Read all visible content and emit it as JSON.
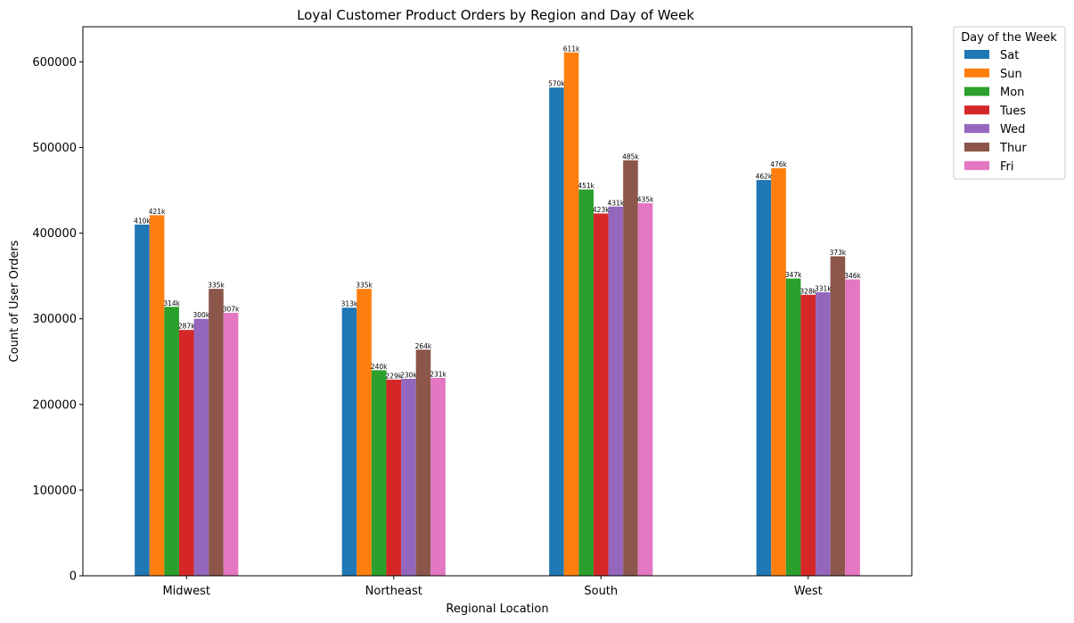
{
  "chart_data": {
    "type": "bar",
    "title": "Loyal Customer Product Orders by Region and Day of Week",
    "xlabel": "Regional Location",
    "ylabel": "Count of User Orders",
    "categories": [
      "Midwest",
      "Northeast",
      "South",
      "West"
    ],
    "ylim": [
      0,
      641000
    ],
    "yticks": [
      0,
      100000,
      200000,
      300000,
      400000,
      500000,
      600000
    ],
    "ytick_labels": [
      "0",
      "100000",
      "200000",
      "300000",
      "400000",
      "500000",
      "600000"
    ],
    "legend": {
      "title": "Day of the Week",
      "placement": "outside-top-right"
    },
    "grid": false,
    "series": [
      {
        "name": "Sat",
        "color": "#1f77b4",
        "values": [
          410000,
          313000,
          570000,
          462000
        ],
        "labels": [
          "410k",
          "313k",
          "570k",
          "462k"
        ]
      },
      {
        "name": "Sun",
        "color": "#ff7f0e",
        "values": [
          421000,
          335000,
          611000,
          476000
        ],
        "labels": [
          "421k",
          "335k",
          "611k",
          "476k"
        ]
      },
      {
        "name": "Mon",
        "color": "#2ca02c",
        "values": [
          314000,
          240000,
          451000,
          347000
        ],
        "labels": [
          "314k",
          "240k",
          "451k",
          "347k"
        ]
      },
      {
        "name": "Tues",
        "color": "#d62728",
        "values": [
          287000,
          229000,
          423000,
          328000
        ],
        "labels": [
          "287k",
          "229k",
          "423k",
          "328k"
        ]
      },
      {
        "name": "Wed",
        "color": "#9467bd",
        "values": [
          300000,
          230000,
          431000,
          331000
        ],
        "labels": [
          "300k",
          "230k",
          "431k",
          "331k"
        ]
      },
      {
        "name": "Thur",
        "color": "#8c564b",
        "values": [
          335000,
          264000,
          485000,
          373000
        ],
        "labels": [
          "335k",
          "264k",
          "485k",
          "373k"
        ]
      },
      {
        "name": "Fri",
        "color": "#e377c2",
        "values": [
          307000,
          231000,
          435000,
          346000
        ],
        "labels": [
          "307k",
          "231k",
          "435k",
          "346k"
        ]
      }
    ]
  }
}
